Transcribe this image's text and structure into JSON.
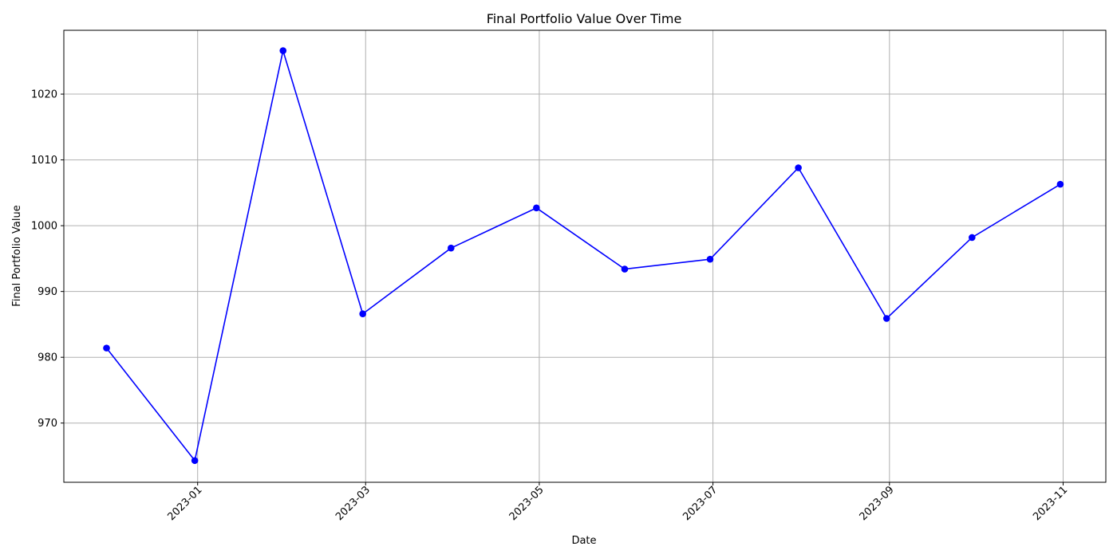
{
  "chart_data": {
    "type": "line",
    "title": "Final Portfolio Value Over Time",
    "xlabel": "Date",
    "ylabel": "Final Portfolio Value",
    "x_type": "date",
    "x": [
      "2022-11-30",
      "2022-12-31",
      "2023-01-31",
      "2023-02-28",
      "2023-03-31",
      "2023-04-30",
      "2023-05-31",
      "2023-06-30",
      "2023-07-31",
      "2023-08-31",
      "2023-09-30",
      "2023-10-31"
    ],
    "series": [
      {
        "values": [
          981.4,
          964.3,
          1026.6,
          986.6,
          996.6,
          1002.7,
          993.4,
          994.9,
          1008.8,
          985.9,
          998.2,
          1006.3
        ],
        "color": "#0000ff",
        "marker": "circle"
      }
    ],
    "x_ticks": [
      "2023-01",
      "2023-03",
      "2023-05",
      "2023-07",
      "2023-09",
      "2023-11"
    ],
    "x_tick_dates": [
      "2023-01-01",
      "2023-03-01",
      "2023-05-01",
      "2023-07-01",
      "2023-09-01",
      "2023-11-01"
    ],
    "y_ticks": [
      970,
      980,
      990,
      1000,
      1010,
      1020
    ],
    "xlim": [
      "2022-11-15",
      "2023-11-16"
    ],
    "ylim": [
      961,
      1029.7
    ],
    "grid": true,
    "x_tick_rotation_deg": 45
  }
}
